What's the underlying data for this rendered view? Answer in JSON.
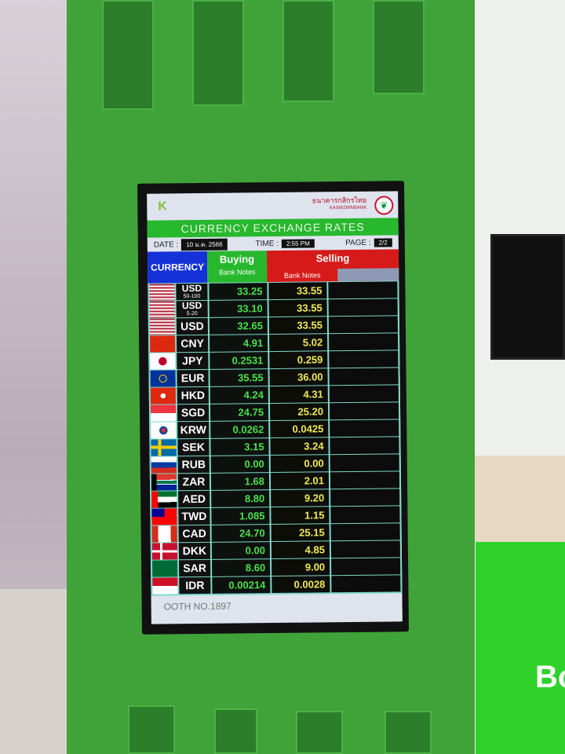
{
  "board": {
    "bank_name": "ธนาคารกสิกรไทย",
    "bank_name_en": "KASIKORNBANK",
    "title": "CURRENCY EXCHANGE RATES",
    "date_label": "DATE :",
    "date": "10 ม.ค. 2566",
    "time_label": "TIME :",
    "time": "2:55 PM",
    "page_label": "PAGE :",
    "page": "2/2",
    "col_currency": "CURRENCY",
    "col_buying": "Buying",
    "col_selling": "Selling",
    "sub_bank_notes_buy": "Bank Notes",
    "sub_bank_notes_sell": "Bank Notes",
    "footer": "OOTH NO.1897",
    "colors": {
      "title_green": "#27b82e",
      "currency_blue": "#1531d8",
      "selling_red": "#d61a1a",
      "buy_text": "#4be14b",
      "sell_text": "#f2ea56"
    },
    "rows": [
      {
        "flag": "us",
        "code": "USD",
        "note": "50-100",
        "buy": "33.25",
        "sell": "33.55"
      },
      {
        "flag": "us",
        "code": "USD",
        "note": "5-20",
        "buy": "33.10",
        "sell": "33.55"
      },
      {
        "flag": "us",
        "code": "USD",
        "note": "",
        "buy": "32.65",
        "sell": "33.55"
      },
      {
        "flag": "cn",
        "code": "CNY",
        "note": "",
        "buy": "4.91",
        "sell": "5.02"
      },
      {
        "flag": "jp",
        "code": "JPY",
        "note": "",
        "buy": "0.2531",
        "sell": "0.259"
      },
      {
        "flag": "eu",
        "code": "EUR",
        "note": "",
        "buy": "35.55",
        "sell": "36.00"
      },
      {
        "flag": "hk",
        "code": "HKD",
        "note": "",
        "buy": "4.24",
        "sell": "4.31"
      },
      {
        "flag": "sg",
        "code": "SGD",
        "note": "",
        "buy": "24.75",
        "sell": "25.20"
      },
      {
        "flag": "kr",
        "code": "KRW",
        "note": "",
        "buy": "0.0262",
        "sell": "0.0425"
      },
      {
        "flag": "se",
        "code": "SEK",
        "note": "",
        "buy": "3.15",
        "sell": "3.24"
      },
      {
        "flag": "ru",
        "code": "RUB",
        "note": "",
        "buy": "0.00",
        "sell": "0.00"
      },
      {
        "flag": "za",
        "code": "ZAR",
        "note": "",
        "buy": "1.68",
        "sell": "2.01"
      },
      {
        "flag": "ae",
        "code": "AED",
        "note": "",
        "buy": "8.80",
        "sell": "9.20"
      },
      {
        "flag": "tw",
        "code": "TWD",
        "note": "",
        "buy": "1.085",
        "sell": "1.15"
      },
      {
        "flag": "ca",
        "code": "CAD",
        "note": "",
        "buy": "24.70",
        "sell": "25.15"
      },
      {
        "flag": "dk",
        "code": "DKK",
        "note": "",
        "buy": "0.00",
        "sell": "4.85"
      },
      {
        "flag": "sa",
        "code": "SAR",
        "note": "",
        "buy": "8.60",
        "sell": "9.00"
      },
      {
        "flag": "id",
        "code": "IDR",
        "note": "",
        "buy": "0.00214",
        "sell": "0.0028"
      }
    ]
  },
  "background": {
    "sign_text": "Bo"
  }
}
